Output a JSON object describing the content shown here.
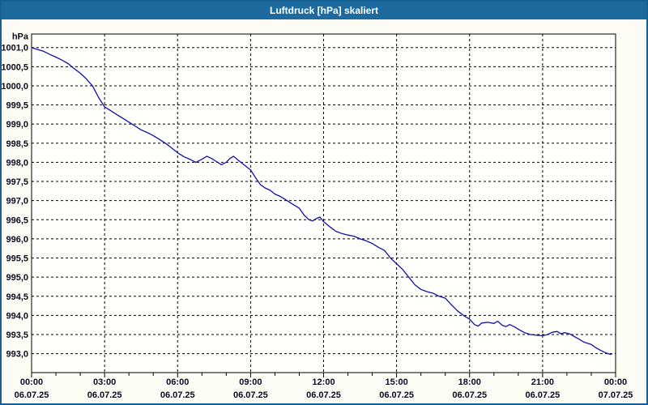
{
  "window": {
    "title": "Luftdruck [hPa] skaliert"
  },
  "colors": {
    "titlebar": "#1d6b9e",
    "window_border": "#166192",
    "window_bg": "#fcfcf4",
    "plot_bg": "#fffffc",
    "grid": "#000000",
    "axis": "#000000",
    "label_text": "#0a0a1e",
    "title_text": "#ffffff",
    "series": "#1010a8"
  },
  "chart_data": {
    "type": "line",
    "title": "Luftdruck [hPa] skaliert",
    "unit": "hPa",
    "decimal_separator": ",",
    "ylim": [
      992.5,
      1001.35
    ],
    "y_ticks": [
      1001.0,
      1000.5,
      1000.0,
      999.5,
      999.0,
      998.5,
      998.0,
      997.5,
      997.0,
      996.5,
      996.0,
      995.5,
      995.0,
      994.5,
      994.0,
      993.5,
      993.0
    ],
    "grid": {
      "horizontal": "dashed",
      "vertical": "dashed"
    },
    "x_axis": {
      "range_hours": [
        0,
        24
      ],
      "major_step_hours": 3,
      "minor_step_hours": 1,
      "major_ticks": [
        {
          "time": "00:00",
          "date": "06.07.25"
        },
        {
          "time": "03:00",
          "date": "06.07.25"
        },
        {
          "time": "06:00",
          "date": "06.07.25"
        },
        {
          "time": "09:00",
          "date": "06.07.25"
        },
        {
          "time": "12:00",
          "date": "06.07.25"
        },
        {
          "time": "15:00",
          "date": "06.07.25"
        },
        {
          "time": "18:00",
          "date": "06.07.25"
        },
        {
          "time": "21:00",
          "date": "06.07.25"
        },
        {
          "time": "00:00",
          "date": "07.07.25"
        }
      ]
    },
    "series": [
      {
        "name": "Luftdruck",
        "color": "#1010a8",
        "points": [
          [
            0.0,
            1001.0
          ],
          [
            0.25,
            1000.95
          ],
          [
            0.5,
            1000.9
          ],
          [
            0.75,
            1000.82
          ],
          [
            1.0,
            1000.75
          ],
          [
            1.25,
            1000.67
          ],
          [
            1.5,
            1000.58
          ],
          [
            1.75,
            1000.45
          ],
          [
            2.0,
            1000.33
          ],
          [
            2.25,
            1000.18
          ],
          [
            2.5,
            1000.0
          ],
          [
            2.75,
            999.7
          ],
          [
            3.0,
            999.45
          ],
          [
            3.25,
            999.35
          ],
          [
            3.5,
            999.25
          ],
          [
            3.75,
            999.15
          ],
          [
            4.0,
            999.05
          ],
          [
            4.25,
            998.95
          ],
          [
            4.5,
            998.85
          ],
          [
            4.75,
            998.78
          ],
          [
            5.0,
            998.7
          ],
          [
            5.25,
            998.6
          ],
          [
            5.5,
            998.5
          ],
          [
            5.75,
            998.38
          ],
          [
            6.0,
            998.25
          ],
          [
            6.25,
            998.15
          ],
          [
            6.5,
            998.08
          ],
          [
            6.75,
            998.0
          ],
          [
            7.0,
            998.08
          ],
          [
            7.2,
            998.16
          ],
          [
            7.4,
            998.1
          ],
          [
            7.6,
            998.02
          ],
          [
            7.8,
            997.94
          ],
          [
            8.0,
            998.0
          ],
          [
            8.15,
            998.1
          ],
          [
            8.3,
            998.16
          ],
          [
            8.5,
            998.05
          ],
          [
            8.7,
            997.95
          ],
          [
            9.0,
            997.8
          ],
          [
            9.2,
            997.6
          ],
          [
            9.4,
            997.42
          ],
          [
            9.6,
            997.33
          ],
          [
            9.8,
            997.27
          ],
          [
            10.0,
            997.17
          ],
          [
            10.25,
            997.1
          ],
          [
            10.5,
            997.0
          ],
          [
            10.75,
            996.9
          ],
          [
            11.0,
            996.8
          ],
          [
            11.2,
            996.62
          ],
          [
            11.4,
            996.5
          ],
          [
            11.55,
            996.47
          ],
          [
            11.7,
            996.53
          ],
          [
            11.85,
            996.57
          ],
          [
            12.0,
            996.45
          ],
          [
            12.25,
            996.32
          ],
          [
            12.5,
            996.2
          ],
          [
            12.75,
            996.14
          ],
          [
            13.0,
            996.1
          ],
          [
            13.25,
            996.07
          ],
          [
            13.5,
            996.0
          ],
          [
            13.75,
            995.95
          ],
          [
            14.0,
            995.88
          ],
          [
            14.25,
            995.78
          ],
          [
            14.5,
            995.7
          ],
          [
            14.75,
            995.5
          ],
          [
            15.0,
            995.35
          ],
          [
            15.25,
            995.2
          ],
          [
            15.5,
            995.0
          ],
          [
            15.75,
            994.8
          ],
          [
            16.0,
            994.68
          ],
          [
            16.25,
            994.62
          ],
          [
            16.5,
            994.58
          ],
          [
            16.75,
            994.5
          ],
          [
            17.0,
            994.45
          ],
          [
            17.25,
            994.28
          ],
          [
            17.5,
            994.12
          ],
          [
            17.75,
            994.0
          ],
          [
            18.0,
            993.9
          ],
          [
            18.2,
            993.76
          ],
          [
            18.35,
            993.72
          ],
          [
            18.5,
            993.8
          ],
          [
            18.75,
            993.82
          ],
          [
            19.0,
            993.79
          ],
          [
            19.15,
            993.85
          ],
          [
            19.35,
            993.74
          ],
          [
            19.5,
            993.71
          ],
          [
            19.65,
            993.76
          ],
          [
            19.85,
            993.7
          ],
          [
            20.0,
            993.64
          ],
          [
            20.25,
            993.55
          ],
          [
            20.5,
            993.5
          ],
          [
            20.75,
            993.48
          ],
          [
            21.0,
            993.47
          ],
          [
            21.2,
            993.5
          ],
          [
            21.4,
            993.56
          ],
          [
            21.6,
            993.58
          ],
          [
            21.75,
            993.52
          ],
          [
            21.9,
            993.55
          ],
          [
            22.1,
            993.52
          ],
          [
            22.3,
            993.45
          ],
          [
            22.5,
            993.38
          ],
          [
            22.7,
            993.3
          ],
          [
            23.0,
            993.24
          ],
          [
            23.2,
            993.15
          ],
          [
            23.4,
            993.08
          ],
          [
            23.6,
            993.02
          ],
          [
            23.8,
            992.98
          ],
          [
            23.85,
            993.0
          ]
        ]
      }
    ]
  }
}
